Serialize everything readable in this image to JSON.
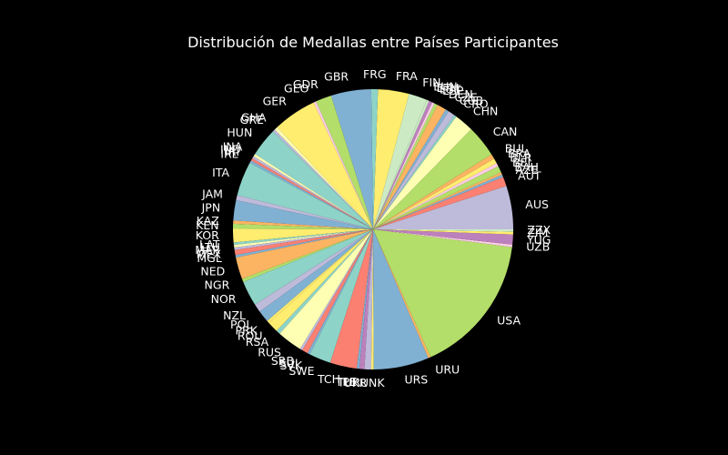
{
  "chart_data": {
    "type": "pie",
    "title": "Distribución de Medallas entre Países Participantes",
    "start_angle_deg": 0,
    "direction": "counterclockwise",
    "slices": [
      {
        "label": "AUS",
        "value": 5.2,
        "color": "#bebada"
      },
      {
        "label": "AUT",
        "value": 1.1,
        "color": "#fb8072"
      },
      {
        "label": "AZE",
        "value": 0.3,
        "color": "#80b1d3"
      },
      {
        "label": "BAH",
        "value": 0.3,
        "color": "#fdb462"
      },
      {
        "label": "BEL",
        "value": 0.8,
        "color": "#b3de69"
      },
      {
        "label": "BLR",
        "value": 0.4,
        "color": "#fccde5"
      },
      {
        "label": "BRA",
        "value": 0.6,
        "color": "#ffed6f"
      },
      {
        "label": "BUL",
        "value": 0.6,
        "color": "#fdb462"
      },
      {
        "label": "CAN",
        "value": 3.8,
        "color": "#b3de69"
      },
      {
        "label": "CHN",
        "value": 2.3,
        "color": "#ffffb3"
      },
      {
        "label": "CRO",
        "value": 0.3,
        "color": "#8dd3c7"
      },
      {
        "label": "CUB",
        "value": 0.8,
        "color": "#bebada"
      },
      {
        "label": "CZE",
        "value": 0.4,
        "color": "#80b1d3"
      },
      {
        "label": "DEN",
        "value": 1.1,
        "color": "#fdb462"
      },
      {
        "label": "ESP",
        "value": 0.4,
        "color": "#b3de69"
      },
      {
        "label": "EST",
        "value": 0.3,
        "color": "#fccde5"
      },
      {
        "label": "ETH",
        "value": 0.4,
        "color": "#bc80bd"
      },
      {
        "label": "EUN",
        "value": 0.3,
        "color": "#ccebc5"
      },
      {
        "label": "FIN",
        "value": 2.2,
        "color": "#ccebc5"
      },
      {
        "label": "FRA",
        "value": 3.7,
        "color": "#ffed6f"
      },
      {
        "label": "FRG",
        "value": 0.8,
        "color": "#8dd3c7"
      },
      {
        "label": "GBR",
        "value": 4.8,
        "color": "#80b1d3"
      },
      {
        "label": "GDR",
        "value": 1.9,
        "color": "#b3de69"
      },
      {
        "label": "GEO",
        "value": 0.3,
        "color": "#fccde5"
      },
      {
        "label": "GER",
        "value": 5.2,
        "color": "#ffed6f"
      },
      {
        "label": "GHA",
        "value": 0.4,
        "color": "#ffffb3"
      },
      {
        "label": "GRE",
        "value": 0.3,
        "color": "#bebada"
      },
      {
        "label": "HUN",
        "value": 3.4,
        "color": "#8dd3c7"
      },
      {
        "label": "INA",
        "value": 0.3,
        "color": "#ffffb3"
      },
      {
        "label": "IND",
        "value": 0.3,
        "color": "#bebada"
      },
      {
        "label": "IRI",
        "value": 0.3,
        "color": "#fb8072"
      },
      {
        "label": "IRL",
        "value": 0.3,
        "color": "#80b1d3"
      },
      {
        "label": "ITA",
        "value": 4.1,
        "color": "#8dd3c7"
      },
      {
        "label": "JAM",
        "value": 0.6,
        "color": "#bebada"
      },
      {
        "label": "JPN",
        "value": 2.4,
        "color": "#80b1d3"
      },
      {
        "label": "KAZ",
        "value": 0.4,
        "color": "#fdb462"
      },
      {
        "label": "KEN",
        "value": 0.6,
        "color": "#b3de69"
      },
      {
        "label": "KOR",
        "value": 1.6,
        "color": "#ffed6f"
      },
      {
        "label": "LAT",
        "value": 0.3,
        "color": "#8dd3c7"
      },
      {
        "label": "LTU",
        "value": 0.3,
        "color": "#ffffb3"
      },
      {
        "label": "MAR",
        "value": 0.3,
        "color": "#bebada"
      },
      {
        "label": "MEX",
        "value": 0.6,
        "color": "#fb8072"
      },
      {
        "label": "MGL",
        "value": 0.3,
        "color": "#80b1d3"
      },
      {
        "label": "NED",
        "value": 2.6,
        "color": "#fdb462"
      },
      {
        "label": "NGR",
        "value": 0.4,
        "color": "#b3de69"
      },
      {
        "label": "NOR",
        "value": 3.0,
        "color": "#8dd3c7"
      },
      {
        "label": "NZL",
        "value": 1.0,
        "color": "#bebada"
      },
      {
        "label": "POL",
        "value": 1.4,
        "color": "#80b1d3"
      },
      {
        "label": "PRK",
        "value": 0.3,
        "color": "#ffed6f"
      },
      {
        "label": "ROU",
        "value": 1.3,
        "color": "#ffed6f"
      },
      {
        "label": "RSA",
        "value": 0.5,
        "color": "#8dd3c7"
      },
      {
        "label": "RUS",
        "value": 3.0,
        "color": "#ffffb3"
      },
      {
        "label": "SRB",
        "value": 0.3,
        "color": "#bebada"
      },
      {
        "label": "SUI",
        "value": 0.7,
        "color": "#fb8072"
      },
      {
        "label": "SVK",
        "value": 0.3,
        "color": "#80b1d3"
      },
      {
        "label": "SWE",
        "value": 2.6,
        "color": "#8dd3c7"
      },
      {
        "label": "TCH",
        "value": 3.2,
        "color": "#fb8072"
      },
      {
        "label": "TPE",
        "value": 0.3,
        "color": "#80b1d3"
      },
      {
        "label": "TUR",
        "value": 0.6,
        "color": "#bc80bd"
      },
      {
        "label": "UKR",
        "value": 0.8,
        "color": "#bebada"
      },
      {
        "label": "UNK",
        "value": 0.3,
        "color": "#ffed6f"
      },
      {
        "label": "URS",
        "value": 6.6,
        "color": "#80b1d3"
      },
      {
        "label": "URU",
        "value": 0.3,
        "color": "#fdb462"
      },
      {
        "label": "USA",
        "value": 16.8,
        "color": "#b3de69"
      },
      {
        "label": "UZB",
        "value": 0.3,
        "color": "#fccde5"
      },
      {
        "label": "YUG",
        "value": 1.2,
        "color": "#bc80bd"
      },
      {
        "label": "ZIM",
        "value": 0.3,
        "color": "#ffed6f"
      },
      {
        "label": "ZZX",
        "value": 0.3,
        "color": "#ccebc5"
      }
    ]
  }
}
